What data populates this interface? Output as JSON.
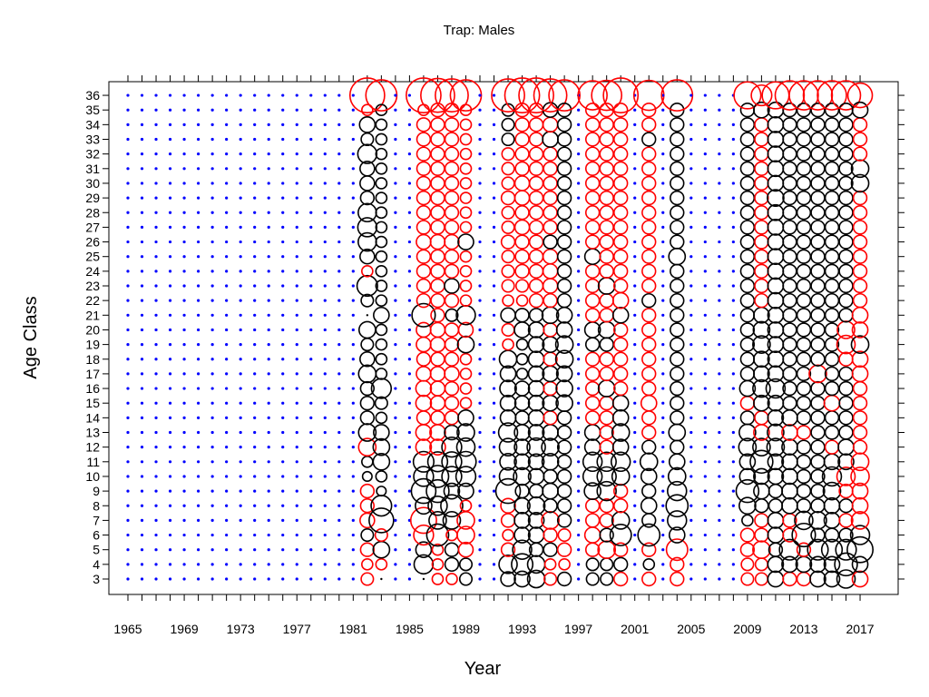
{
  "chart_data": {
    "type": "scatter",
    "variant": "bubble",
    "title": "Trap: Males",
    "xlabel": "Year",
    "ylabel": "Age Class",
    "xlim": [
      1965,
      2017
    ],
    "ylim": [
      3,
      36
    ],
    "x_tick_labels": [
      "1965",
      "1969",
      "1973",
      "1977",
      "1981",
      "1985",
      "1989",
      "1993",
      "1997",
      "2001",
      "2005",
      "2009",
      "2013",
      "2017"
    ],
    "y_tick_labels": [
      "3",
      "4",
      "5",
      "6",
      "7",
      "8",
      "9",
      "10",
      "11",
      "12",
      "13",
      "14",
      "15",
      "16",
      "17",
      "18",
      "19",
      "20",
      "21",
      "22",
      "23",
      "24",
      "25",
      "26",
      "27",
      "28",
      "29",
      "30",
      "31",
      "32",
      "33",
      "34",
      "35",
      "36"
    ],
    "grid": false,
    "legend": "none",
    "background_marker": "blue dot for each year/age cell without a bubble",
    "colors": {
      "negative": "#000000",
      "positive": "#ff0000",
      "empty": "#0000ff"
    },
    "active_years": [
      1982,
      1983,
      1986,
      1987,
      1988,
      1989,
      1992,
      1993,
      1994,
      1995,
      1996,
      1998,
      1999,
      2000,
      2002,
      2004,
      2009,
      2010,
      2011,
      2012,
      2013,
      2014,
      2015,
      2016,
      2017
    ],
    "ages": [
      3,
      4,
      5,
      6,
      7,
      8,
      9,
      10,
      11,
      12,
      13,
      14,
      15,
      16,
      17,
      18,
      19,
      20,
      21,
      22,
      23,
      24,
      25,
      26,
      27,
      28,
      29,
      30,
      31,
      32,
      33,
      34,
      35,
      36
    ],
    "residuals": {
      "1982": [
        0.25,
        0.2,
        0.3,
        -0.25,
        0.35,
        0.3,
        0.3,
        -0.15,
        -0.2,
        0.5,
        -0.5,
        -0.3,
        -0.3,
        -0.3,
        -0.5,
        -0.35,
        -0.25,
        -0.45,
        0.0,
        -0.25,
        -0.7,
        0.2,
        -0.35,
        -0.55,
        -0.6,
        -0.55,
        -0.3,
        -0.35,
        -0.35,
        -0.6,
        -0.25,
        -0.4,
        0.2,
        2.0
      ],
      "1983": [
        0.0,
        0.2,
        -0.45,
        0.25,
        -1.0,
        -0.7,
        -0.15,
        -0.2,
        -0.45,
        -0.45,
        -0.4,
        -0.2,
        -0.25,
        -0.65,
        -0.2,
        -0.2,
        -0.2,
        -0.2,
        -0.4,
        -0.2,
        -0.2,
        -0.2,
        -0.2,
        -0.2,
        -0.2,
        -0.2,
        -0.2,
        -0.2,
        -0.2,
        -0.2,
        -0.2,
        -0.2,
        -0.2,
        1.6
      ],
      "1986": [
        0.0,
        -0.6,
        -0.4,
        0.65,
        1.1,
        -0.45,
        -1.0,
        -0.65,
        -0.7,
        0.4,
        0.4,
        0.3,
        0.4,
        0.4,
        0.35,
        0.3,
        0.35,
        0.35,
        -0.9,
        0.3,
        0.3,
        0.3,
        0.3,
        0.35,
        0.3,
        0.3,
        0.3,
        0.3,
        0.3,
        0.3,
        0.3,
        0.3,
        0.2,
        2.0
      ],
      "1987": [
        0.2,
        0.2,
        0.2,
        -0.8,
        -0.5,
        -0.6,
        -0.85,
        -0.8,
        -0.65,
        0.4,
        0.4,
        0.3,
        0.35,
        0.35,
        0.35,
        0.3,
        0.35,
        0.35,
        0.3,
        0.3,
        0.3,
        0.3,
        0.3,
        0.35,
        0.3,
        0.3,
        0.3,
        0.3,
        0.3,
        0.3,
        0.3,
        0.3,
        0.3,
        1.9
      ],
      "1988": [
        0.2,
        -0.3,
        -0.3,
        0.2,
        -0.5,
        -0.8,
        -0.4,
        -0.65,
        -0.65,
        -0.65,
        -0.35,
        0.3,
        0.3,
        0.3,
        0.35,
        0.3,
        0.3,
        0.3,
        -0.25,
        0.3,
        -0.35,
        0.3,
        0.3,
        0.35,
        0.3,
        0.3,
        0.3,
        0.3,
        0.3,
        0.3,
        0.3,
        0.3,
        0.3,
        1.8
      ],
      "1989": [
        -0.25,
        -0.25,
        0.35,
        0.5,
        0.5,
        0.2,
        -0.4,
        -0.65,
        -0.7,
        -0.55,
        -0.5,
        -0.4,
        0.2,
        0.2,
        0.2,
        0.2,
        -0.45,
        0.35,
        -0.6,
        0.2,
        0.2,
        0.2,
        0.2,
        -0.4,
        0.2,
        0.2,
        0.2,
        0.2,
        0.2,
        0.2,
        0.2,
        0.2,
        0.2,
        1.6
      ],
      "1992": [
        -0.35,
        -0.55,
        0.3,
        0.2,
        0.3,
        0.35,
        -1.0,
        -0.5,
        -0.45,
        -0.5,
        -0.6,
        -0.4,
        -0.4,
        -0.45,
        -0.4,
        -0.5,
        0.2,
        0.25,
        -0.35,
        0.2,
        0.25,
        0.25,
        0.25,
        0.3,
        0.25,
        0.25,
        0.3,
        0.25,
        0.25,
        0.25,
        -0.25,
        -0.25,
        -0.25,
        1.8
      ],
      "1993": [
        -0.4,
        -0.75,
        -0.6,
        -0.4,
        -0.4,
        -0.4,
        -0.3,
        -0.5,
        -0.4,
        -0.4,
        -0.4,
        -0.3,
        -0.35,
        -0.35,
        -0.2,
        -0.2,
        -0.2,
        -0.4,
        -0.3,
        0.2,
        0.25,
        0.3,
        0.3,
        0.3,
        0.35,
        0.3,
        0.35,
        0.35,
        0.3,
        0.3,
        0.3,
        0.3,
        0.3,
        2.0
      ],
      "1994": [
        -0.5,
        -0.5,
        -0.3,
        -0.4,
        -0.4,
        -0.5,
        -0.3,
        -0.4,
        -0.4,
        -0.55,
        -0.4,
        -0.4,
        -0.4,
        -0.4,
        -0.4,
        -0.4,
        -0.4,
        -0.4,
        -0.3,
        0.3,
        0.3,
        0.3,
        0.3,
        0.3,
        0.3,
        0.3,
        0.3,
        0.3,
        0.3,
        0.3,
        0.3,
        0.3,
        0.3,
        2.0
      ],
      "1995": [
        0.25,
        0.2,
        -0.3,
        0.3,
        0.5,
        -0.3,
        -0.4,
        -0.3,
        -0.45,
        -0.5,
        -0.4,
        0.3,
        -0.4,
        0.3,
        -0.4,
        0.3,
        -0.4,
        0.3,
        -0.45,
        0.3,
        0.35,
        0.35,
        0.35,
        -0.3,
        0.3,
        0.3,
        0.3,
        0.3,
        0.3,
        0.3,
        -0.4,
        0.35,
        -0.35,
        1.8
      ],
      "1996": [
        -0.3,
        0.2,
        0.3,
        0.25,
        -0.3,
        -0.3,
        -0.3,
        -0.3,
        -0.3,
        -0.3,
        -0.3,
        -0.3,
        -0.45,
        -0.45,
        -0.4,
        -0.5,
        -0.5,
        -0.4,
        -0.4,
        -0.3,
        -0.3,
        -0.3,
        -0.3,
        -0.3,
        -0.3,
        -0.3,
        -0.3,
        -0.3,
        -0.3,
        -0.3,
        -0.3,
        -0.3,
        -0.3,
        1.6
      ],
      "1998": [
        -0.25,
        -0.25,
        0.3,
        0.4,
        0.3,
        0.3,
        -0.45,
        -0.6,
        -0.6,
        -0.4,
        -0.4,
        0.3,
        0.3,
        0.3,
        0.3,
        0.3,
        -0.3,
        -0.4,
        0.3,
        0.3,
        0.3,
        0.3,
        -0.4,
        0.3,
        0.3,
        0.3,
        0.3,
        0.3,
        0.3,
        0.3,
        0.3,
        0.3,
        0.3,
        1.4
      ],
      "1999": [
        -0.25,
        -0.25,
        0.5,
        -0.3,
        0.3,
        0.3,
        -0.6,
        -0.6,
        -0.6,
        0.3,
        0.3,
        0.3,
        0.3,
        -0.45,
        0.3,
        0.3,
        -0.3,
        -0.45,
        0.3,
        0.3,
        -0.45,
        0.3,
        0.3,
        0.3,
        0.3,
        0.3,
        0.3,
        0.3,
        0.3,
        0.3,
        0.3,
        0.3,
        0.3,
        1.5
      ],
      "2000": [
        0.3,
        -0.3,
        0.3,
        -0.75,
        -0.5,
        0.3,
        0.3,
        -0.5,
        -0.6,
        -0.4,
        -0.5,
        -0.4,
        -0.4,
        0.3,
        0.3,
        0.3,
        0.3,
        0.3,
        -0.4,
        0.4,
        0.3,
        0.3,
        0.3,
        0.3,
        0.3,
        0.3,
        0.3,
        0.3,
        0.3,
        0.3,
        0.3,
        0.3,
        0.3,
        2.0
      ],
      "2002": [
        0.3,
        -0.2,
        0.3,
        -0.8,
        -0.3,
        -0.4,
        -0.3,
        -0.4,
        -0.5,
        -0.3,
        0.3,
        0.3,
        0.4,
        0.3,
        0.3,
        0.3,
        0.3,
        0.3,
        0.3,
        -0.3,
        0.3,
        0.3,
        0.3,
        0.3,
        0.3,
        0.3,
        0.3,
        0.3,
        0.3,
        0.3,
        -0.3,
        0.3,
        0.3,
        1.5
      ],
      "2004": [
        0.3,
        0.3,
        0.75,
        -0.4,
        -0.6,
        -0.8,
        -0.6,
        -0.5,
        -0.4,
        -0.3,
        -0.45,
        -0.3,
        -0.3,
        -0.3,
        -0.3,
        -0.3,
        -0.3,
        -0.3,
        -0.3,
        -0.3,
        -0.3,
        -0.3,
        -0.45,
        -0.3,
        -0.3,
        -0.3,
        -0.3,
        -0.3,
        -0.3,
        -0.3,
        -0.3,
        -0.3,
        -0.3,
        1.6
      ],
      "2009": [
        0.25,
        0.25,
        0.3,
        0.3,
        -0.2,
        -0.45,
        -0.85,
        -0.4,
        -0.4,
        -0.5,
        -0.45,
        -0.3,
        0.3,
        -0.4,
        -0.3,
        -0.3,
        -0.3,
        -0.3,
        -0.3,
        -0.3,
        -0.3,
        -0.3,
        -0.3,
        -0.3,
        -0.3,
        -0.3,
        -0.3,
        -0.3,
        -0.3,
        -0.3,
        -0.3,
        -0.3,
        -0.3,
        1.2
      ],
      "2010": [
        0.25,
        0.25,
        0.5,
        0.3,
        0.3,
        -0.3,
        -0.4,
        -0.4,
        -0.85,
        -0.5,
        0.4,
        0.3,
        -0.4,
        -0.5,
        -0.4,
        -0.4,
        -0.5,
        -0.45,
        -0.4,
        0.3,
        0.3,
        0.3,
        0.3,
        0.3,
        0.3,
        0.3,
        0.3,
        0.3,
        0.3,
        0.3,
        0.3,
        0.3,
        -0.4,
        0.7
      ],
      "2011": [
        -0.4,
        -0.4,
        -0.3,
        -0.4,
        -0.4,
        -0.3,
        -0.3,
        -0.4,
        -0.4,
        -0.5,
        -0.45,
        -0.4,
        -0.4,
        -0.6,
        -0.4,
        -0.4,
        -0.4,
        -0.4,
        -0.4,
        -0.4,
        -0.4,
        -0.4,
        -0.4,
        -0.4,
        -0.4,
        -0.4,
        -0.45,
        -0.4,
        -0.4,
        -0.4,
        -0.4,
        -0.4,
        -0.4,
        1.2
      ],
      "2012": [
        0.3,
        -0.4,
        -0.7,
        0.3,
        0.3,
        -0.4,
        -0.4,
        -0.4,
        -0.4,
        -0.4,
        0.4,
        -0.4,
        -0.3,
        -0.3,
        -0.3,
        -0.3,
        -0.3,
        -0.3,
        -0.3,
        -0.3,
        -0.3,
        -0.3,
        -0.3,
        -0.3,
        -0.3,
        -0.3,
        -0.3,
        -0.3,
        -0.3,
        -0.3,
        -0.3,
        -0.3,
        -0.3,
        1.4
      ],
      "2013": [
        0.3,
        -0.4,
        0.3,
        -0.9,
        -0.55,
        -0.3,
        -0.3,
        -0.3,
        -0.3,
        -0.3,
        0.3,
        -0.3,
        -0.3,
        -0.3,
        -0.3,
        -0.3,
        -0.3,
        -0.3,
        -0.3,
        -0.3,
        -0.3,
        -0.3,
        -0.3,
        -0.3,
        -0.3,
        -0.3,
        -0.3,
        -0.3,
        -0.3,
        -0.3,
        -0.3,
        -0.3,
        -0.3,
        1.4
      ],
      "2014": [
        -0.4,
        -0.4,
        -0.7,
        -0.3,
        -0.5,
        -0.3,
        -0.3,
        -0.3,
        -0.3,
        -0.3,
        -0.3,
        -0.3,
        -0.3,
        -0.3,
        0.5,
        -0.3,
        -0.3,
        -0.3,
        -0.3,
        -0.3,
        -0.3,
        -0.3,
        -0.3,
        -0.3,
        -0.3,
        -0.3,
        -0.3,
        -0.3,
        -0.3,
        -0.3,
        -0.3,
        -0.3,
        -0.3,
        1.4
      ],
      "2015": [
        -0.4,
        -0.4,
        -0.7,
        -0.3,
        -0.4,
        -0.4,
        -0.5,
        -0.6,
        -0.4,
        0.3,
        -0.3,
        -0.3,
        0.4,
        -0.3,
        -0.3,
        -0.3,
        -0.3,
        -0.3,
        -0.3,
        -0.3,
        -0.3,
        -0.3,
        -0.3,
        -0.3,
        -0.3,
        -0.3,
        -0.3,
        -0.3,
        -0.3,
        -0.3,
        -0.3,
        -0.3,
        -0.3,
        1.4
      ],
      "2016": [
        -0.55,
        -0.85,
        -0.7,
        -0.3,
        0.3,
        -0.3,
        0.3,
        0.55,
        -0.4,
        -0.4,
        -0.3,
        -0.3,
        -0.3,
        -0.3,
        -0.3,
        0.3,
        0.55,
        0.5,
        -0.3,
        -0.3,
        -0.3,
        -0.3,
        -0.3,
        -0.3,
        -0.3,
        -0.3,
        -0.3,
        -0.3,
        -0.3,
        -0.3,
        -0.3,
        -0.3,
        -0.3,
        1.4
      ],
      "2017": [
        0.4,
        -0.4,
        -1.1,
        -0.6,
        0.5,
        0.4,
        0.4,
        0.55,
        0.5,
        0.3,
        0.3,
        0.3,
        0.3,
        0.3,
        0.4,
        0.4,
        -0.5,
        0.4,
        0.4,
        0.3,
        0.3,
        0.3,
        0.3,
        0.3,
        0.3,
        0.3,
        0.3,
        -0.5,
        -0.5,
        0.3,
        0.3,
        0.3,
        -0.4,
        1.0
      ]
    }
  }
}
